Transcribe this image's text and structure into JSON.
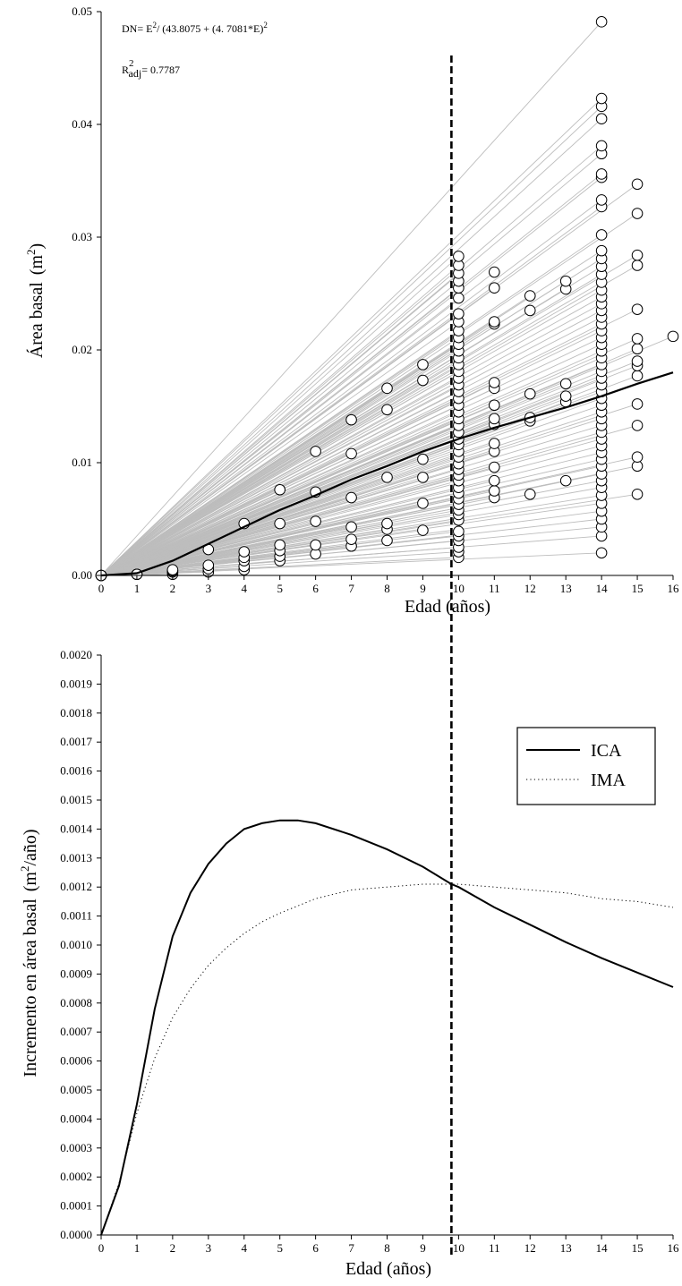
{
  "chart_data": [
    {
      "type": "scatter",
      "xlabel": "Edad (años)",
      "ylabel_main": "Área basal",
      "ylabel_unit_base": "(m",
      "ylabel_unit_sup": "2",
      "ylabel_unit_close": ")",
      "xlim": [
        0,
        16
      ],
      "ylim": [
        0,
        0.05
      ],
      "x_ticks": [
        0,
        1,
        2,
        3,
        4,
        5,
        6,
        7,
        8,
        9,
        10,
        11,
        12,
        13,
        14,
        15,
        16
      ],
      "y_ticks": [
        0.0,
        0.01,
        0.02,
        0.03,
        0.04,
        0.05
      ],
      "y_tick_labels": [
        "0.00",
        "0.01",
        "0.02",
        "0.03",
        "0.04",
        "0.05"
      ],
      "annotation_equation": {
        "p1": "DN= E",
        "sup1": "2",
        "p2": "/ (43.8075 + (4. 7081*E)",
        "sup2": "2"
      },
      "annotation_r2": {
        "r": "R",
        "sup": "2",
        "sub": "adj",
        "value": "= 0.7787"
      },
      "model": {
        "a": 43.8075,
        "b": 4.7081
      },
      "reference_line_x": 9.8,
      "points": {
        "age_0": [
          0,
          0,
          0,
          0
        ],
        "age_1": [
          0.0001,
          0.0001,
          0.0001
        ],
        "age_2": [
          0.0001,
          0.0003,
          0.0004,
          0.0005
        ],
        "age_3": [
          0.0003,
          0.0006,
          0.0009,
          0.0023
        ],
        "age_4": [
          0.0005,
          0.0008,
          0.0013,
          0.0016,
          0.0021,
          0.0046
        ],
        "age_5": [
          0.0013,
          0.0017,
          0.0022,
          0.0027,
          0.0046,
          0.0076
        ],
        "age_6": [
          0.0019,
          0.0027,
          0.0048,
          0.0074,
          0.011
        ],
        "age_7": [
          0.0026,
          0.0032,
          0.0043,
          0.0069,
          0.0108,
          0.0138
        ],
        "age_8": [
          0.0031,
          0.0041,
          0.0046,
          0.0087,
          0.0147,
          0.0166
        ],
        "age_9": [
          0.004,
          0.0064,
          0.0087,
          0.0103,
          0.0173,
          0.0187
        ],
        "age_10": [
          0.0016,
          0.0021,
          0.0025,
          0.0031,
          0.0035,
          0.0039,
          0.0049,
          0.0054,
          0.0058,
          0.0063,
          0.0068,
          0.0073,
          0.0078,
          0.0084,
          0.0089,
          0.0094,
          0.0099,
          0.0105,
          0.011,
          0.0116,
          0.0121,
          0.0127,
          0.0133,
          0.0139,
          0.0145,
          0.0151,
          0.0157,
          0.0163,
          0.0169,
          0.0175,
          0.0181,
          0.0187,
          0.0193,
          0.0199,
          0.0205,
          0.0211,
          0.0217,
          0.0225,
          0.0232,
          0.0246,
          0.0255,
          0.0261,
          0.0268,
          0.0275,
          0.0283
        ],
        "age_11": [
          0.0069,
          0.0075,
          0.0084,
          0.0096,
          0.011,
          0.0117,
          0.0134,
          0.0139,
          0.0151,
          0.0166,
          0.0171,
          0.0223,
          0.0225,
          0.0255,
          0.0269
        ],
        "age_12": [
          0.0072,
          0.0137,
          0.014,
          0.0161,
          0.0235,
          0.0248
        ],
        "age_13": [
          0.0084,
          0.0154,
          0.0159,
          0.017,
          0.0254,
          0.0261
        ],
        "age_14": [
          0.002,
          0.0035,
          0.0043,
          0.005,
          0.0057,
          0.0064,
          0.0071,
          0.0078,
          0.0084,
          0.009,
          0.0097,
          0.0103,
          0.0109,
          0.0115,
          0.0121,
          0.0127,
          0.0133,
          0.0139,
          0.0145,
          0.0151,
          0.0157,
          0.0163,
          0.0169,
          0.0175,
          0.0181,
          0.0187,
          0.0193,
          0.0199,
          0.0205,
          0.0211,
          0.0217,
          0.0223,
          0.0229,
          0.0235,
          0.0241,
          0.0247,
          0.0253,
          0.026,
          0.0267,
          0.0274,
          0.0281,
          0.0288,
          0.0302,
          0.0327,
          0.0333,
          0.0353,
          0.0356,
          0.0374,
          0.0381,
          0.0405,
          0.0416,
          0.0423,
          0.0491
        ],
        "age_15": [
          0.0072,
          0.0097,
          0.0105,
          0.0133,
          0.0152,
          0.0177,
          0.0186,
          0.019,
          0.0201,
          0.021,
          0.0236,
          0.0275,
          0.0284,
          0.0321,
          0.0347
        ],
        "age_16": [
          0.0212
        ]
      }
    },
    {
      "type": "line",
      "xlabel": "Edad (años)",
      "ylabel_main": "Incremento en área basal",
      "ylabel_unit_base": "(m",
      "ylabel_unit_sup": "2",
      "ylabel_unit_close": "/año)",
      "xlim": [
        0,
        16
      ],
      "ylim": [
        0,
        0.002
      ],
      "x_ticks": [
        0,
        1,
        2,
        3,
        4,
        5,
        6,
        7,
        8,
        9,
        10,
        11,
        12,
        13,
        14,
        15,
        16
      ],
      "y_ticks": [
        0.0,
        0.0001,
        0.0002,
        0.0003,
        0.0004,
        0.0005,
        0.0006,
        0.0007,
        0.0008,
        0.0009,
        0.001,
        0.0011,
        0.0012,
        0.0013,
        0.0014,
        0.0015,
        0.0016,
        0.0017,
        0.0018,
        0.0019,
        0.002
      ],
      "y_tick_labels": [
        "0.0000",
        "0.0001",
        "0.0002",
        "0.0003",
        "0.0004",
        "0.0005",
        "0.0006",
        "0.0007",
        "0.0008",
        "0.0009",
        "0.0010",
        "0.0011",
        "0.0012",
        "0.0013",
        "0.0014",
        "0.0015",
        "0.0016",
        "0.0017",
        "0.0018",
        "0.0019",
        "0.0020"
      ],
      "series": [
        {
          "name": "ICA",
          "style": "solid",
          "color": "#000000"
        },
        {
          "name": "IMA",
          "style": "dotted",
          "color": "#000000"
        }
      ],
      "legend_position": "top-right",
      "reference_line_x": 9.8
    }
  ]
}
